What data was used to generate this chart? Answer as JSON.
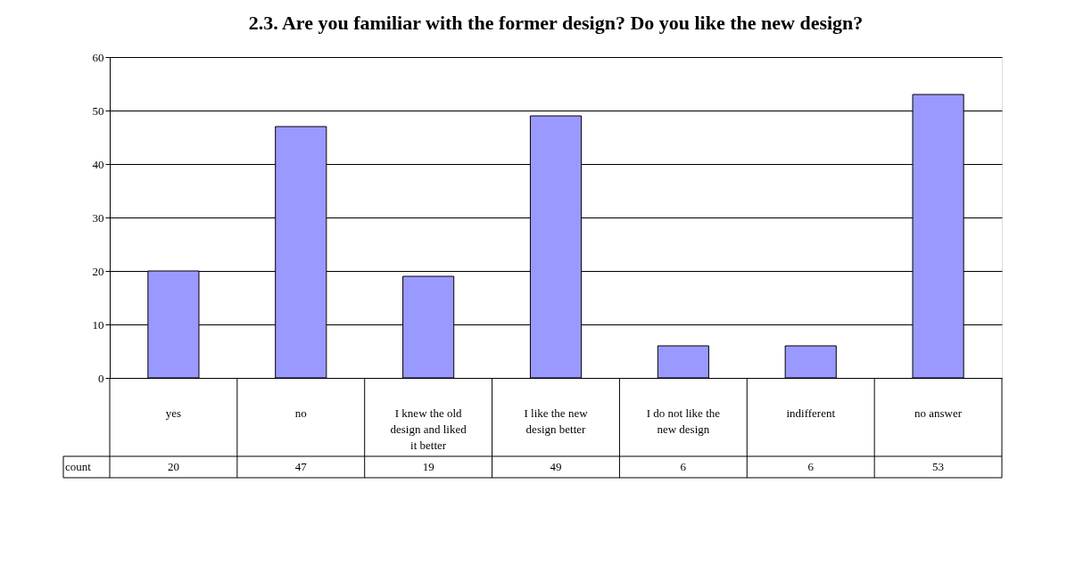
{
  "chart_data": {
    "type": "bar",
    "title": "2.3. Are you familiar with the former design? Do you like the new design?",
    "categories": [
      "yes",
      "no",
      "I knew the old design and liked it better",
      "I like the new design better",
      "I do not like the new design",
      "indifferent",
      "no answer"
    ],
    "series": [
      {
        "name": "count",
        "color": "#9999ff",
        "values": [
          20,
          47,
          19,
          49,
          6,
          6,
          53
        ]
      }
    ],
    "ylim": [
      0,
      60
    ],
    "yticks": [
      0,
      10,
      20,
      30,
      40,
      50,
      60
    ],
    "grid": "y",
    "data_labels": true,
    "legend": "bottom left"
  }
}
